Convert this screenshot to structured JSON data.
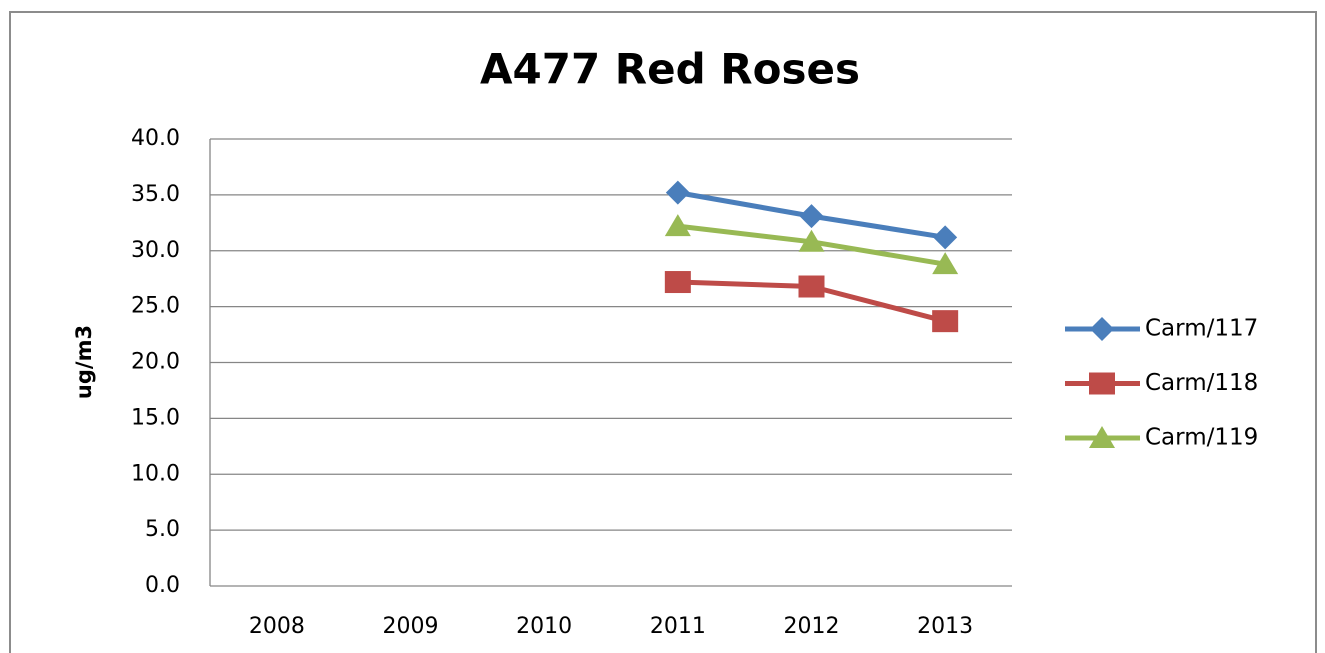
{
  "chart_data": {
    "type": "line",
    "title": "A477 Red Roses",
    "y_label": "ug/m3",
    "categories": [
      "2008",
      "2009",
      "2010",
      "2011",
      "2012",
      "2013"
    ],
    "series": [
      {
        "name": "Carm/117",
        "color": "#4a7ebb",
        "marker": "diamond",
        "values": [
          null,
          null,
          null,
          35.2,
          33.1,
          31.2
        ]
      },
      {
        "name": "Carm/118",
        "color": "#be4b48",
        "marker": "square",
        "values": [
          null,
          null,
          null,
          27.2,
          26.8,
          23.7
        ]
      },
      {
        "name": "Carm/119",
        "color": "#98b954",
        "marker": "triangle",
        "values": [
          null,
          null,
          null,
          32.2,
          30.8,
          28.8
        ]
      }
    ],
    "ylim": [
      0,
      40
    ],
    "yticks": [
      {
        "value": 0,
        "label": "0.0"
      },
      {
        "value": 5,
        "label": "5.0"
      },
      {
        "value": 10,
        "label": "10.0"
      },
      {
        "value": 15,
        "label": "15.0"
      },
      {
        "value": 20,
        "label": "20.0"
      },
      {
        "value": 25,
        "label": "25.0"
      },
      {
        "value": 30,
        "label": "30.0"
      },
      {
        "value": 35,
        "label": "35.0"
      },
      {
        "value": 40,
        "label": "40.0"
      }
    ],
    "grid": true,
    "legend": "right"
  }
}
